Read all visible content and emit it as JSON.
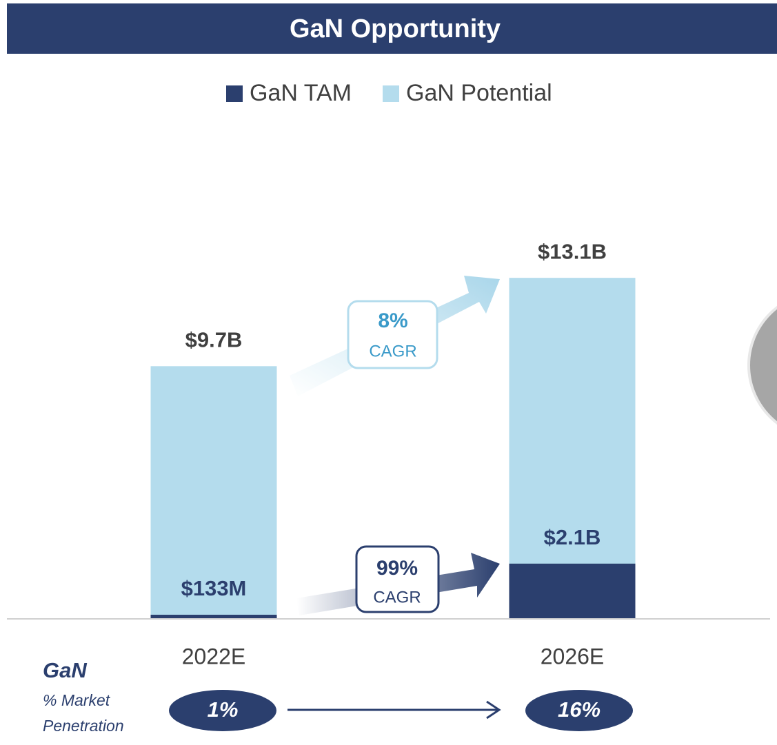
{
  "chart_data": {
    "type": "bar",
    "title": "GaN Opportunity",
    "categories": [
      "2022E",
      "2026E"
    ],
    "series": [
      {
        "name": "GaN TAM",
        "color": "#2b3f6e",
        "values": [
          0.133,
          2.1
        ],
        "value_labels": [
          "$133M",
          "$2.1B"
        ]
      },
      {
        "name": "GaN Potential",
        "color": "#b4dced",
        "values": [
          9.7,
          13.1
        ],
        "value_labels": [
          "$9.7B",
          "$13.1B"
        ]
      }
    ],
    "ylim": [
      0,
      14
    ],
    "annotations": [
      {
        "value": "8%",
        "text": "CAGR"
      },
      {
        "value": "99%",
        "text": "CAGR"
      }
    ],
    "penetration": {
      "title": "GaN",
      "lines": [
        "% Market",
        "Penetration"
      ],
      "labels": [
        "1%",
        "16%"
      ]
    }
  }
}
